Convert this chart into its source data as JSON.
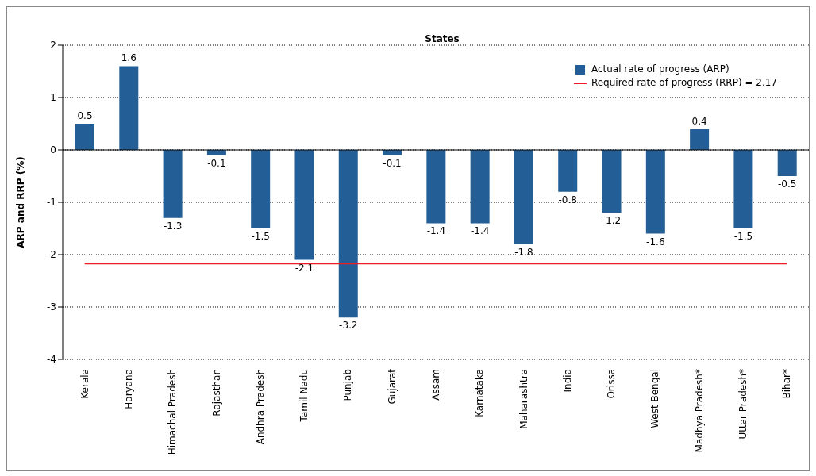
{
  "chart_data": {
    "type": "bar",
    "title": "States",
    "ylabel": "ARP and RRP (%)",
    "categories": [
      "Kerala",
      "Haryana",
      "Himachal Pradesh",
      "Rajasthan",
      "Andhra Pradesh",
      "Tamil Nadu",
      "Punjab",
      "Gujarat",
      "Assam",
      "Karnataka",
      "Maharashtra",
      "India",
      "Orissa",
      "West Bengal",
      "Madhya Pradesh*",
      "Uttar Pradesh*",
      "Bihar*"
    ],
    "series": [
      {
        "name": "Actual rate of progress (ARP)",
        "color": "#235f96",
        "values": [
          0.5,
          1.6,
          -1.3,
          -0.1,
          -1.5,
          -2.1,
          -3.2,
          -0.1,
          -1.4,
          -1.4,
          -1.8,
          -0.8,
          -1.2,
          -1.6,
          0.4,
          -1.5,
          -0.5
        ],
        "value_labels": [
          "0.5",
          "1.6",
          "-1.3",
          "-0.1",
          "-1.5",
          "-2.1",
          "-3.2",
          "-0.1",
          "-1.4",
          "-1.4",
          "-1.8",
          "-0.8",
          "-1.2",
          "-1.6",
          "0.4",
          "-1.5",
          "-0.5"
        ]
      },
      {
        "type": "line",
        "name": "Required rate of progress (RRP) = 2.17",
        "color": "#ee1c25",
        "values": [
          -2.17,
          -2.17,
          -2.17,
          -2.17,
          -2.17,
          -2.17,
          -2.17,
          -2.17,
          -2.17,
          -2.17,
          -2.17,
          -2.17,
          -2.17,
          -2.17,
          -2.17,
          -2.17,
          -2.17
        ]
      }
    ],
    "ylim": [
      -4,
      2
    ],
    "yticks": [
      -4,
      -3,
      -2,
      -1,
      0,
      1,
      2
    ],
    "grid": "y",
    "legend": "top right",
    "marker": "none",
    "line_style": "solid"
  }
}
